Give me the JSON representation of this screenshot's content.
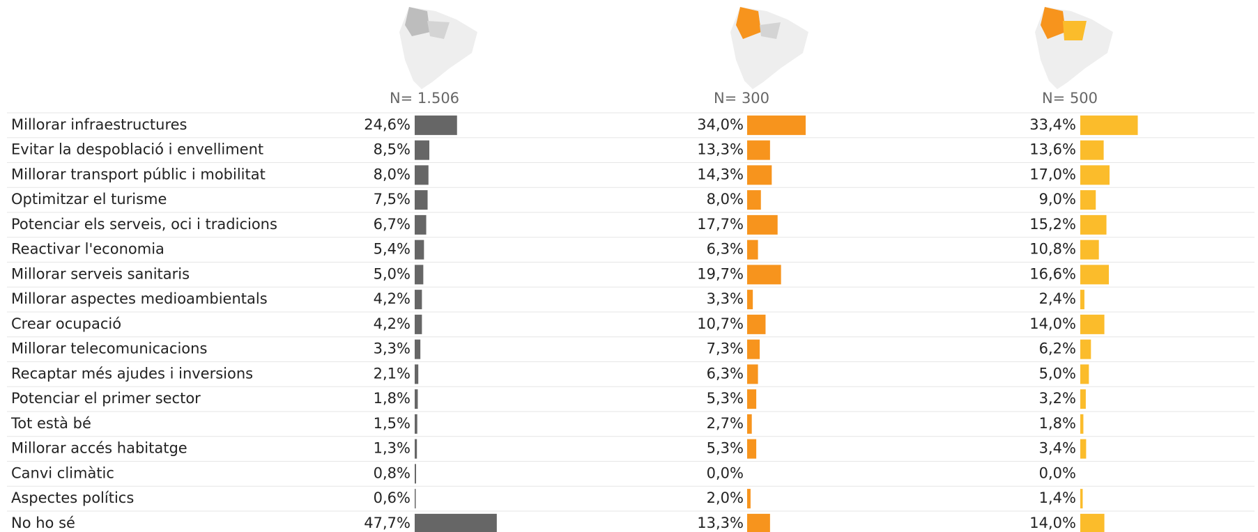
{
  "chart_data": {
    "type": "bar",
    "orientation": "horizontal",
    "categories": [
      "Millorar infraestructures",
      "Evitar la despoblació i envelliment",
      "Millorar transport públic i mobilitat",
      "Optimitzar el turisme",
      "Potenciar els serveis, oci i tradicions",
      "Reactivar l'economia",
      "Millorar serveis sanitaris",
      "Millorar aspectes medioambientals",
      "Crear ocupació",
      "Millorar telecomunicacions",
      "Recaptar més ajudes i inversions",
      "Potenciar el primer sector",
      "Tot està bé",
      "Millorar accés habitatge",
      "Canvi climàtic",
      "Aspectes polítics",
      "No ho sé"
    ],
    "series": [
      {
        "name": "N= 1.506",
        "color": "#666666",
        "values": [
          24.6,
          8.5,
          8.0,
          7.5,
          6.7,
          5.4,
          5.0,
          4.2,
          4.2,
          3.3,
          2.1,
          1.8,
          1.5,
          1.3,
          0.8,
          0.6,
          47.7
        ],
        "value_labels": [
          "24,6%",
          "8,5%",
          "8,0%",
          "7,5%",
          "6,7%",
          "5,4%",
          "5,0%",
          "4,2%",
          "4,2%",
          "3,3%",
          "2,1%",
          "1,8%",
          "1,5%",
          "1,3%",
          "0,8%",
          "0,6%",
          "47,7%"
        ]
      },
      {
        "name": "N= 300",
        "color": "#f7941d",
        "values": [
          34.0,
          13.3,
          14.3,
          8.0,
          17.7,
          6.3,
          19.7,
          3.3,
          10.7,
          7.3,
          6.3,
          5.3,
          2.7,
          5.3,
          0.0,
          2.0,
          13.3
        ],
        "value_labels": [
          "34,0%",
          "13,3%",
          "14,3%",
          "8,0%",
          "17,7%",
          "6,3%",
          "19,7%",
          "3,3%",
          "10,7%",
          "7,3%",
          "6,3%",
          "5,3%",
          "2,7%",
          "5,3%",
          "0,0%",
          "2,0%",
          "13,3%"
        ]
      },
      {
        "name": "N= 500",
        "color": "#fbbc2b",
        "values": [
          33.4,
          13.6,
          17.0,
          9.0,
          15.2,
          10.8,
          16.6,
          2.4,
          14.0,
          6.2,
          5.0,
          3.2,
          1.8,
          3.4,
          0.0,
          1.4,
          14.0
        ],
        "value_labels": [
          "33,4%",
          "13,6%",
          "17,0%",
          "9,0%",
          "15,2%",
          "10,8%",
          "16,6%",
          "2,4%",
          "14,0%",
          "6,2%",
          "5,0%",
          "3,2%",
          "1,8%",
          "3,4%",
          "0,0%",
          "1,4%",
          "14,0%"
        ]
      }
    ]
  }
}
